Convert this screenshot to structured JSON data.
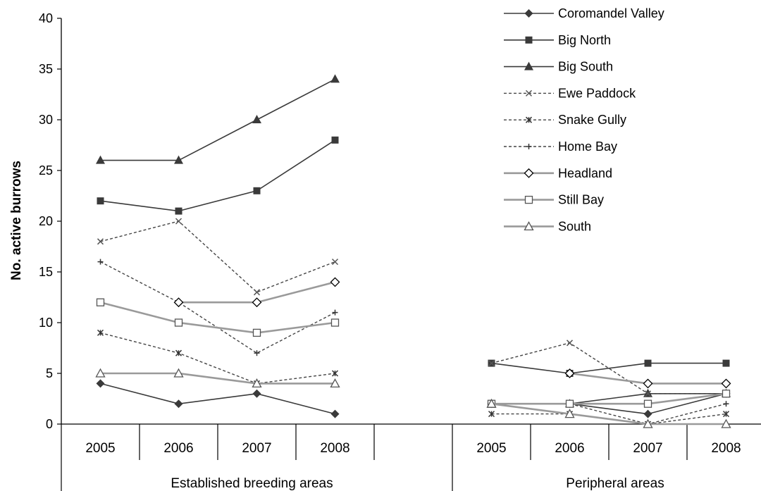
{
  "chart_data": {
    "type": "line",
    "ylabel": "No. active burrows",
    "ylim": [
      0,
      40
    ],
    "yticks": [
      0,
      5,
      10,
      15,
      20,
      25,
      30,
      35,
      40
    ],
    "groups": [
      {
        "label": "Established breeding areas",
        "years": [
          "2005",
          "2006",
          "2007",
          "2008"
        ]
      },
      {
        "label": "Peripheral areas",
        "years": [
          "2005",
          "2006",
          "2007",
          "2008"
        ]
      }
    ],
    "legend_position": "top-right",
    "series": [
      {
        "name": "Coromandel Valley",
        "established": [
          4,
          2,
          3,
          1
        ],
        "peripheral": [
          2,
          2,
          1,
          3
        ]
      },
      {
        "name": "Big North",
        "established": [
          22,
          21,
          23,
          28
        ],
        "peripheral": [
          6,
          5,
          6,
          6
        ]
      },
      {
        "name": "Big South",
        "established": [
          26,
          26,
          30,
          34
        ],
        "peripheral": [
          2,
          2,
          3,
          3
        ]
      },
      {
        "name": "Ewe Paddock",
        "established": [
          18,
          20,
          13,
          16
        ],
        "peripheral": [
          6,
          8,
          3,
          3
        ]
      },
      {
        "name": "Snake Gully",
        "established": [
          9,
          7,
          4,
          5
        ],
        "peripheral": [
          1,
          1,
          0,
          1
        ]
      },
      {
        "name": "Home Bay",
        "established": [
          16,
          12,
          7,
          11
        ],
        "peripheral": [
          2,
          2,
          0,
          2
        ]
      },
      {
        "name": "Headland",
        "established": [
          null,
          12,
          12,
          14
        ],
        "peripheral": [
          null,
          5,
          4,
          4
        ]
      },
      {
        "name": "Still Bay",
        "established": [
          12,
          10,
          9,
          10
        ],
        "peripheral": [
          2,
          2,
          2,
          3
        ]
      },
      {
        "name": "South",
        "established": [
          5,
          5,
          4,
          4
        ],
        "peripheral": [
          2,
          1,
          0,
          0
        ]
      }
    ]
  },
  "styles": [
    {
      "marker": "diamond-filled",
      "line": "solid",
      "color": "#3a3a3a"
    },
    {
      "marker": "square-filled",
      "line": "solid",
      "color": "#3a3a3a"
    },
    {
      "marker": "triangle-filled",
      "line": "solid",
      "color": "#3a3a3a"
    },
    {
      "marker": "x",
      "line": "dashed",
      "color": "#555555"
    },
    {
      "marker": "star",
      "line": "dashed",
      "color": "#333333"
    },
    {
      "marker": "plus",
      "line": "dashed",
      "color": "#333333"
    },
    {
      "marker": "diamond-open",
      "line": "gray",
      "color": "#8c8c8c"
    },
    {
      "marker": "square-open",
      "line": "gray",
      "color": "#8c8c8c"
    },
    {
      "marker": "triangle-open",
      "line": "gray",
      "color": "#8c8c8c"
    }
  ]
}
